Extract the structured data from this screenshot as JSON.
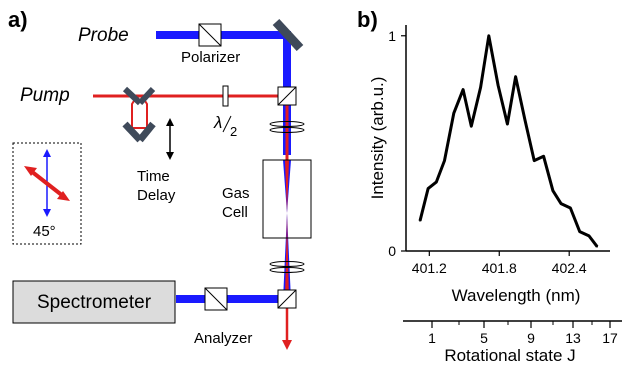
{
  "panel_a": {
    "label": "a)",
    "probe_label": "Probe",
    "pump_label": "Pump",
    "polarizer_label": "Polarizer",
    "halfwave_symbol": "λ",
    "halfwave_denominator": "2",
    "time_delay_line1": "Time",
    "time_delay_line2": "Delay",
    "gas_cell_line1": "Gas",
    "gas_cell_line2": "Cell",
    "inset_angle": "45°",
    "spectrometer_label": "Spectrometer",
    "analyzer_label": "Analyzer",
    "colors": {
      "probe_beam": "#1a1aff",
      "pump_beam": "#e02020",
      "mirror": "#3f4a5a",
      "spectrometer_fill": "#dcdcdc"
    }
  },
  "panel_b": {
    "label": "b)"
  },
  "chart_data": {
    "type": "line",
    "ylabel": "Intensity (arb.u.)",
    "xlabel": "Wavelength (nm)",
    "xlim": [
      401.0,
      402.75
    ],
    "ylim": [
      0,
      1.05
    ],
    "x_ticks": [
      "401.2",
      "401.8",
      "402.4"
    ],
    "x_tick_values": [
      401.2,
      401.8,
      402.4
    ],
    "y_ticks": [
      "0",
      "1"
    ],
    "y_tick_values": [
      0,
      1
    ],
    "secondary_axis": {
      "label": "Rotational state J",
      "ticks": [
        "1",
        "5",
        "9",
        "13",
        "17"
      ],
      "minor_ticks": [
        "3",
        "7",
        "11",
        "15"
      ]
    },
    "series": [
      {
        "x": [
          401.12,
          401.19,
          401.26,
          401.33,
          401.41,
          401.49,
          401.56,
          401.64,
          401.71,
          401.79,
          401.87,
          401.94,
          402.02,
          402.1,
          402.18,
          402.26,
          402.33,
          402.41,
          402.49,
          402.57,
          402.64
        ],
        "y": [
          0.14,
          0.29,
          0.32,
          0.42,
          0.64,
          0.75,
          0.58,
          0.76,
          1.0,
          0.77,
          0.59,
          0.81,
          0.61,
          0.42,
          0.44,
          0.28,
          0.22,
          0.2,
          0.09,
          0.07,
          0.02
        ]
      }
    ]
  }
}
